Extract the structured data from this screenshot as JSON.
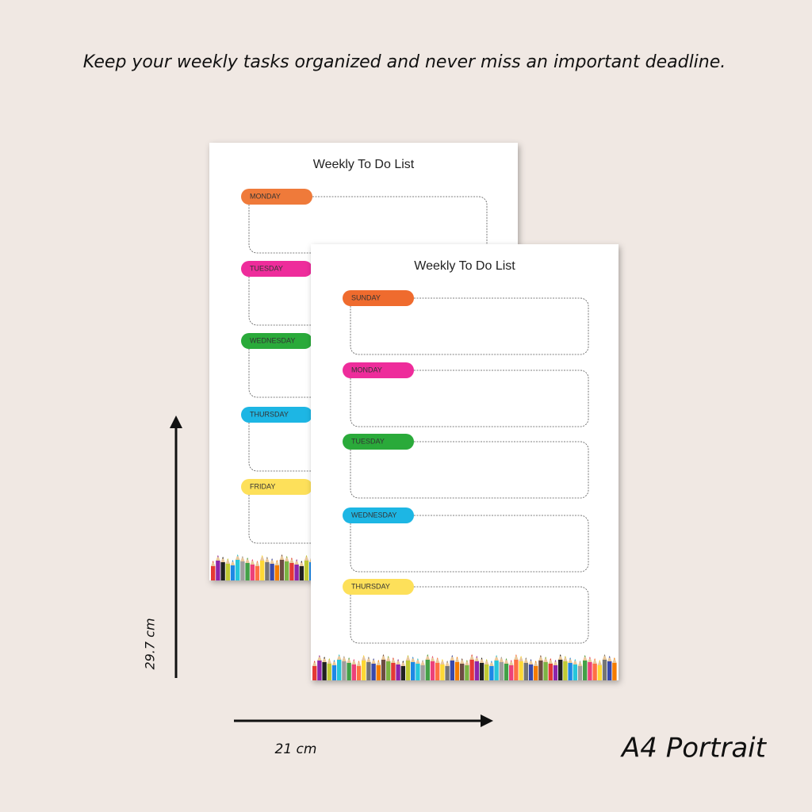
{
  "headline": "Keep your weekly tasks organized and never miss an important deadline.",
  "pages": [
    {
      "title": "Weekly To Do List",
      "days": [
        "MONDAY",
        "TUESDAY",
        "WEDNESDAY",
        "THURSDAY",
        "FRIDAY"
      ]
    },
    {
      "title": "Weekly To Do List",
      "days": [
        "SUNDAY",
        "MONDAY",
        "TUESDAY",
        "WEDNESDAY",
        "THURSDAY"
      ]
    }
  ],
  "dimensions": {
    "height": "29.7 cm",
    "width": "21 cm"
  },
  "format": "A4 Portrait"
}
